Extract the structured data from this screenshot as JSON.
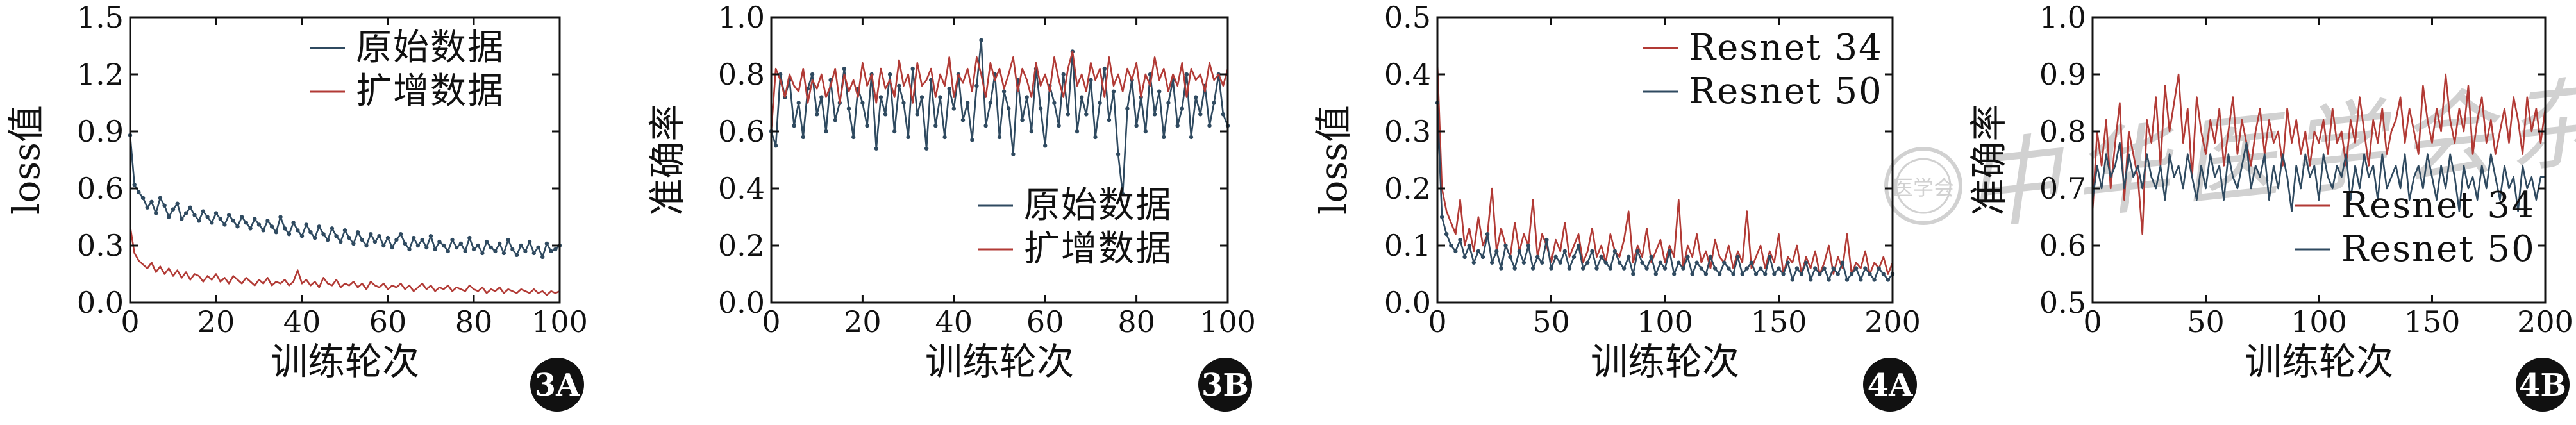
{
  "colors": {
    "blue": "#2f4a60",
    "red": "#b23a35",
    "axis": "#111111",
    "badge_bg": "#111111",
    "badge_fg": "#ffffff",
    "watermark": "#c9c9c9"
  },
  "watermark": {
    "text": "中华医学会杂志",
    "seal_text": "医学会"
  },
  "chart_data": [
    {
      "id": "3A",
      "type": "line",
      "badge": "3A",
      "xlabel": "训练轮次",
      "ylabel": "loss值",
      "xlim": [
        0,
        100
      ],
      "ylim": [
        0,
        1.5
      ],
      "xticks": [
        0,
        20,
        40,
        60,
        80,
        100
      ],
      "yticks": [
        0.0,
        0.3,
        0.6,
        0.9,
        1.2,
        1.5
      ],
      "ytick_labels": [
        "0.0",
        "0.3",
        "0.6",
        "0.9",
        "1.2",
        "1.5"
      ],
      "legend_position": "top-right",
      "series": [
        {
          "name": "原始数据",
          "color": "blue",
          "markers": true,
          "x_start": 0,
          "x_step": 1,
          "values": [
            0.88,
            0.62,
            0.58,
            0.55,
            0.5,
            0.53,
            0.47,
            0.55,
            0.51,
            0.45,
            0.49,
            0.52,
            0.44,
            0.47,
            0.5,
            0.46,
            0.43,
            0.48,
            0.45,
            0.42,
            0.47,
            0.44,
            0.41,
            0.46,
            0.43,
            0.4,
            0.45,
            0.42,
            0.39,
            0.44,
            0.41,
            0.38,
            0.43,
            0.4,
            0.37,
            0.45,
            0.39,
            0.36,
            0.42,
            0.38,
            0.35,
            0.41,
            0.37,
            0.34,
            0.4,
            0.36,
            0.33,
            0.39,
            0.35,
            0.32,
            0.38,
            0.34,
            0.31,
            0.37,
            0.33,
            0.3,
            0.36,
            0.32,
            0.35,
            0.3,
            0.34,
            0.29,
            0.33,
            0.36,
            0.31,
            0.28,
            0.34,
            0.3,
            0.33,
            0.29,
            0.35,
            0.28,
            0.32,
            0.3,
            0.27,
            0.33,
            0.29,
            0.31,
            0.27,
            0.34,
            0.28,
            0.3,
            0.26,
            0.32,
            0.29,
            0.27,
            0.31,
            0.26,
            0.33,
            0.28,
            0.25,
            0.3,
            0.27,
            0.32,
            0.26,
            0.29,
            0.24,
            0.31,
            0.27,
            0.28,
            0.3
          ]
        },
        {
          "name": "扩增数据",
          "color": "red",
          "markers": false,
          "x_start": 0,
          "x_step": 1,
          "values": [
            0.4,
            0.26,
            0.22,
            0.2,
            0.18,
            0.21,
            0.16,
            0.19,
            0.15,
            0.18,
            0.14,
            0.17,
            0.13,
            0.16,
            0.12,
            0.15,
            0.14,
            0.11,
            0.14,
            0.12,
            0.15,
            0.11,
            0.13,
            0.1,
            0.14,
            0.12,
            0.1,
            0.13,
            0.11,
            0.09,
            0.12,
            0.1,
            0.13,
            0.09,
            0.11,
            0.1,
            0.12,
            0.09,
            0.11,
            0.17,
            0.1,
            0.12,
            0.09,
            0.11,
            0.08,
            0.13,
            0.1,
            0.09,
            0.12,
            0.08,
            0.1,
            0.09,
            0.11,
            0.08,
            0.1,
            0.07,
            0.11,
            0.09,
            0.08,
            0.1,
            0.07,
            0.09,
            0.08,
            0.1,
            0.07,
            0.09,
            0.06,
            0.08,
            0.1,
            0.07,
            0.09,
            0.06,
            0.08,
            0.07,
            0.09,
            0.06,
            0.08,
            0.07,
            0.06,
            0.09,
            0.07,
            0.06,
            0.08,
            0.05,
            0.07,
            0.06,
            0.08,
            0.05,
            0.07,
            0.06,
            0.05,
            0.07,
            0.06,
            0.05,
            0.07,
            0.05,
            0.06,
            0.04,
            0.06,
            0.05,
            0.06
          ]
        }
      ]
    },
    {
      "id": "3B",
      "type": "line",
      "badge": "3B",
      "xlabel": "训练轮次",
      "ylabel": "准确率",
      "xlim": [
        0,
        100
      ],
      "ylim": [
        0,
        1.0
      ],
      "xticks": [
        0,
        20,
        40,
        60,
        80,
        100
      ],
      "yticks": [
        0.0,
        0.2,
        0.4,
        0.6,
        0.8,
        1.0
      ],
      "ytick_labels": [
        "0.0",
        "0.2",
        "0.4",
        "0.6",
        "0.8",
        "1.0"
      ],
      "legend_position": "bottom-right",
      "series": [
        {
          "name": "原始数据",
          "color": "blue",
          "markers": true,
          "x_start": 0,
          "x_step": 1,
          "values": [
            0.6,
            0.55,
            0.8,
            0.72,
            0.78,
            0.62,
            0.7,
            0.58,
            0.75,
            0.8,
            0.66,
            0.72,
            0.6,
            0.78,
            0.64,
            0.7,
            0.82,
            0.68,
            0.58,
            0.75,
            0.7,
            0.62,
            0.8,
            0.54,
            0.72,
            0.66,
            0.8,
            0.6,
            0.76,
            0.7,
            0.58,
            0.82,
            0.66,
            0.72,
            0.54,
            0.78,
            0.62,
            0.72,
            0.58,
            0.75,
            0.68,
            0.8,
            0.64,
            0.7,
            0.57,
            0.76,
            0.92,
            0.62,
            0.7,
            0.8,
            0.58,
            0.74,
            0.68,
            0.52,
            0.78,
            0.64,
            0.72,
            0.6,
            0.82,
            0.68,
            0.55,
            0.76,
            0.7,
            0.62,
            0.8,
            0.66,
            0.88,
            0.6,
            0.72,
            0.66,
            0.78,
            0.58,
            0.7,
            0.82,
            0.64,
            0.74,
            0.52,
            0.38,
            0.68,
            0.78,
            0.62,
            0.72,
            0.6,
            0.8,
            0.66,
            0.74,
            0.58,
            0.7,
            0.78,
            0.62,
            0.68,
            0.8,
            0.58,
            0.72,
            0.66,
            0.76,
            0.62,
            0.7,
            0.8,
            0.66,
            0.62
          ]
        },
        {
          "name": "扩增数据",
          "color": "red",
          "markers": false,
          "x_start": 0,
          "x_step": 1,
          "values": [
            0.6,
            0.82,
            0.78,
            0.72,
            0.8,
            0.76,
            0.74,
            0.82,
            0.7,
            0.78,
            0.75,
            0.8,
            0.72,
            0.76,
            0.82,
            0.7,
            0.8,
            0.74,
            0.78,
            0.72,
            0.84,
            0.76,
            0.8,
            0.7,
            0.82,
            0.75,
            0.78,
            0.72,
            0.85,
            0.76,
            0.8,
            0.7,
            0.84,
            0.76,
            0.78,
            0.82,
            0.72,
            0.8,
            0.76,
            0.86,
            0.72,
            0.8,
            0.77,
            0.82,
            0.74,
            0.86,
            0.8,
            0.72,
            0.84,
            0.78,
            0.82,
            0.75,
            0.8,
            0.86,
            0.74,
            0.82,
            0.78,
            0.72,
            0.84,
            0.76,
            0.8,
            0.74,
            0.86,
            0.78,
            0.72,
            0.82,
            0.88,
            0.76,
            0.8,
            0.74,
            0.84,
            0.78,
            0.82,
            0.72,
            0.86,
            0.76,
            0.8,
            0.74,
            0.82,
            0.78,
            0.84,
            0.72,
            0.8,
            0.76,
            0.86,
            0.78,
            0.82,
            0.74,
            0.8,
            0.76,
            0.84,
            0.72,
            0.82,
            0.78,
            0.8,
            0.74,
            0.84,
            0.78,
            0.8,
            0.76,
            0.82
          ]
        }
      ]
    },
    {
      "id": "4A",
      "type": "line",
      "badge": "4A",
      "xlabel": "训练轮次",
      "ylabel": "loss值",
      "xlim": [
        0,
        200
      ],
      "ylim": [
        0,
        0.5
      ],
      "xticks": [
        0,
        50,
        100,
        150,
        200
      ],
      "yticks": [
        0.0,
        0.1,
        0.2,
        0.3,
        0.4,
        0.5
      ],
      "ytick_labels": [
        "0.0",
        "0.1",
        "0.2",
        "0.3",
        "0.4",
        "0.5"
      ],
      "legend_position": "top-right",
      "series": [
        {
          "name": "Resnet 34",
          "color": "red",
          "markers": false,
          "x_start": 0,
          "x_step": 2,
          "values": [
            0.42,
            0.2,
            0.16,
            0.14,
            0.12,
            0.18,
            0.1,
            0.13,
            0.09,
            0.15,
            0.1,
            0.12,
            0.2,
            0.09,
            0.13,
            0.1,
            0.08,
            0.14,
            0.09,
            0.12,
            0.1,
            0.18,
            0.08,
            0.12,
            0.1,
            0.07,
            0.11,
            0.09,
            0.14,
            0.08,
            0.1,
            0.12,
            0.07,
            0.09,
            0.13,
            0.08,
            0.1,
            0.07,
            0.12,
            0.09,
            0.08,
            0.11,
            0.16,
            0.07,
            0.1,
            0.08,
            0.13,
            0.07,
            0.09,
            0.11,
            0.07,
            0.1,
            0.08,
            0.18,
            0.06,
            0.1,
            0.08,
            0.12,
            0.07,
            0.09,
            0.06,
            0.11,
            0.08,
            0.07,
            0.1,
            0.06,
            0.09,
            0.07,
            0.16,
            0.06,
            0.08,
            0.1,
            0.06,
            0.09,
            0.07,
            0.12,
            0.05,
            0.08,
            0.07,
            0.1,
            0.05,
            0.08,
            0.06,
            0.09,
            0.05,
            0.07,
            0.1,
            0.05,
            0.08,
            0.06,
            0.12,
            0.05,
            0.07,
            0.06,
            0.09,
            0.05,
            0.07,
            0.06,
            0.08,
            0.05,
            0.07
          ]
        },
        {
          "name": "Resnet 50",
          "color": "blue",
          "markers": true,
          "x_start": 0,
          "x_step": 2,
          "values": [
            0.35,
            0.15,
            0.12,
            0.1,
            0.09,
            0.11,
            0.08,
            0.1,
            0.07,
            0.09,
            0.08,
            0.12,
            0.07,
            0.09,
            0.06,
            0.1,
            0.08,
            0.06,
            0.09,
            0.07,
            0.1,
            0.06,
            0.08,
            0.07,
            0.11,
            0.06,
            0.08,
            0.07,
            0.09,
            0.06,
            0.08,
            0.1,
            0.06,
            0.07,
            0.09,
            0.06,
            0.08,
            0.07,
            0.06,
            0.09,
            0.07,
            0.06,
            0.08,
            0.05,
            0.09,
            0.07,
            0.06,
            0.08,
            0.05,
            0.07,
            0.06,
            0.09,
            0.05,
            0.07,
            0.06,
            0.08,
            0.05,
            0.07,
            0.06,
            0.05,
            0.08,
            0.06,
            0.05,
            0.07,
            0.06,
            0.05,
            0.08,
            0.05,
            0.06,
            0.07,
            0.05,
            0.06,
            0.05,
            0.08,
            0.05,
            0.06,
            0.05,
            0.07,
            0.04,
            0.06,
            0.05,
            0.07,
            0.04,
            0.06,
            0.05,
            0.06,
            0.04,
            0.06,
            0.05,
            0.07,
            0.04,
            0.05,
            0.06,
            0.04,
            0.06,
            0.05,
            0.04,
            0.06,
            0.05,
            0.04,
            0.05
          ]
        }
      ]
    },
    {
      "id": "4B",
      "type": "line",
      "badge": "4B",
      "xlabel": "训练轮次",
      "ylabel": "准确率",
      "xlim": [
        0,
        200
      ],
      "ylim": [
        0.5,
        1.0
      ],
      "xticks": [
        0,
        50,
        100,
        150,
        200
      ],
      "yticks": [
        0.5,
        0.6,
        0.7,
        0.8,
        0.9,
        1.0
      ],
      "ytick_labels": [
        "0.5",
        "0.6",
        "0.7",
        "0.8",
        "0.9",
        "1.0"
      ],
      "legend_position": "bottom-right",
      "series": [
        {
          "name": "Resnet 34",
          "color": "red",
          "markers": false,
          "x_start": 0,
          "x_step": 2,
          "values": [
            0.66,
            0.8,
            0.74,
            0.82,
            0.7,
            0.78,
            0.85,
            0.68,
            0.8,
            0.76,
            0.72,
            0.62,
            0.82,
            0.78,
            0.86,
            0.74,
            0.88,
            0.8,
            0.85,
            0.9,
            0.78,
            0.84,
            0.72,
            0.86,
            0.8,
            0.76,
            0.82,
            0.78,
            0.84,
            0.74,
            0.8,
            0.86,
            0.76,
            0.82,
            0.78,
            0.74,
            0.8,
            0.84,
            0.76,
            0.82,
            0.78,
            0.8,
            0.74,
            0.84,
            0.78,
            0.82,
            0.76,
            0.8,
            0.74,
            0.8,
            0.78,
            0.82,
            0.76,
            0.84,
            0.78,
            0.8,
            0.74,
            0.82,
            0.78,
            0.86,
            0.8,
            0.74,
            0.82,
            0.78,
            0.84,
            0.76,
            0.8,
            0.82,
            0.86,
            0.78,
            0.84,
            0.8,
            0.76,
            0.88,
            0.82,
            0.78,
            0.84,
            0.8,
            0.9,
            0.82,
            0.78,
            0.84,
            0.8,
            0.88,
            0.76,
            0.82,
            0.86,
            0.78,
            0.82,
            0.76,
            0.8,
            0.84,
            0.78,
            0.86,
            0.82,
            0.76,
            0.86,
            0.8,
            0.84,
            0.78,
            0.84
          ]
        },
        {
          "name": "Resnet 50",
          "color": "blue",
          "markers": false,
          "x_start": 0,
          "x_step": 2,
          "values": [
            0.68,
            0.74,
            0.7,
            0.76,
            0.72,
            0.74,
            0.78,
            0.7,
            0.76,
            0.72,
            0.74,
            0.7,
            0.76,
            0.72,
            0.7,
            0.74,
            0.68,
            0.76,
            0.72,
            0.74,
            0.7,
            0.76,
            0.72,
            0.68,
            0.74,
            0.7,
            0.76,
            0.72,
            0.74,
            0.68,
            0.76,
            0.72,
            0.7,
            0.74,
            0.78,
            0.7,
            0.74,
            0.72,
            0.76,
            0.68,
            0.74,
            0.7,
            0.76,
            0.72,
            0.66,
            0.74,
            0.7,
            0.76,
            0.72,
            0.74,
            0.68,
            0.76,
            0.72,
            0.7,
            0.74,
            0.72,
            0.76,
            0.68,
            0.74,
            0.7,
            0.76,
            0.72,
            0.74,
            0.68,
            0.76,
            0.7,
            0.72,
            0.74,
            0.7,
            0.76,
            0.68,
            0.72,
            0.74,
            0.7,
            0.76,
            0.72,
            0.68,
            0.74,
            0.7,
            0.76,
            0.72,
            0.66,
            0.74,
            0.7,
            0.72,
            0.68,
            0.74,
            0.7,
            0.76,
            0.72,
            0.68,
            0.74,
            0.7,
            0.72,
            0.66,
            0.74,
            0.7,
            0.72,
            0.68,
            0.72,
            0.72
          ]
        }
      ]
    }
  ]
}
